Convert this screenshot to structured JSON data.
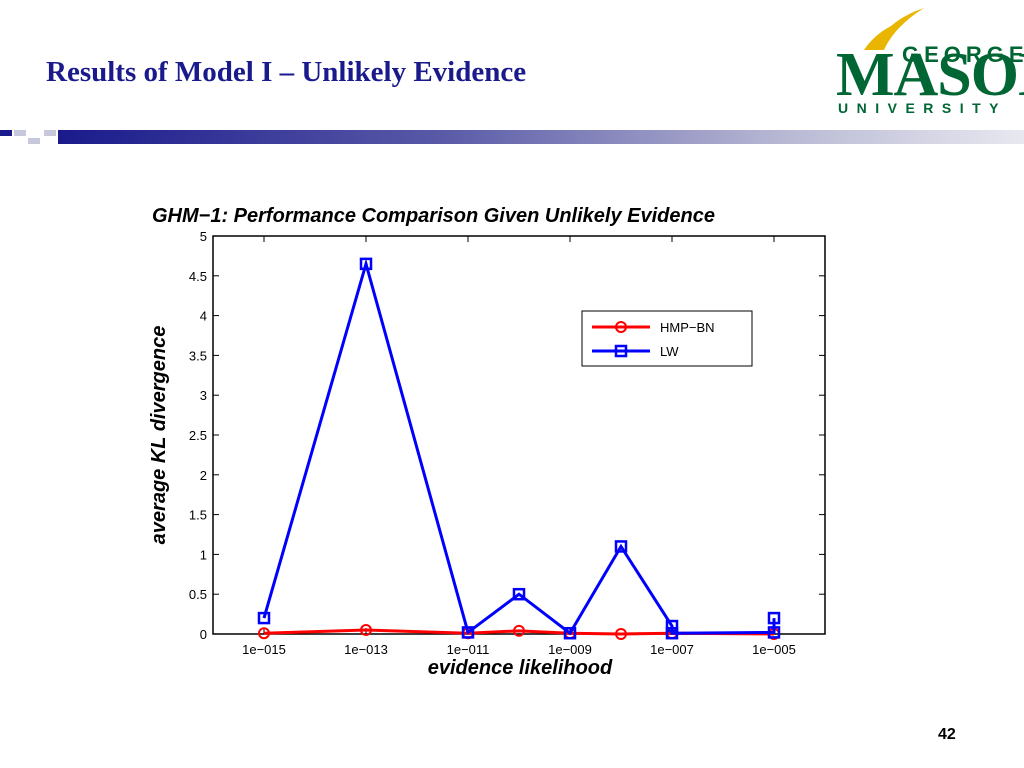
{
  "slide": {
    "title": "Results of  Model I – Unlikely Evidence",
    "page_number": "42"
  },
  "logo": {
    "line1": "GEORGE",
    "line2": "MASON",
    "line3": "UNIVERSITY",
    "colors": {
      "green": "#006633",
      "gold": "#e8b600"
    }
  },
  "colors": {
    "title": "#1a1a8c",
    "bar_dark": "#1a1a8c",
    "bar_light": "#c8c8dc"
  },
  "chart_data": {
    "type": "line",
    "title": "GHM−1: Performance Comparison Given Unlikely Evidence",
    "xlabel": "evidence likelihood",
    "ylabel": "average KL divergence",
    "ylim": [
      0,
      5
    ],
    "yticks": [
      "0",
      "0.5",
      "1",
      "1.5",
      "2",
      "2.5",
      "3",
      "3.5",
      "4",
      "4.5",
      "5"
    ],
    "xticks": [
      "1e−015",
      "1e−013",
      "1e−011",
      "1e−009",
      "1e−007",
      "1e−005"
    ],
    "x_log_exponents_range": [
      -16,
      -4
    ],
    "grid": false,
    "legend_position": "top-right",
    "series": [
      {
        "name": "HMP−BN",
        "color": "#ff0000",
        "marker": "circle",
        "x": [
          1e-15,
          1e-13,
          1e-11,
          1e-10,
          1e-09,
          1e-08,
          1e-07,
          1e-05
        ],
        "y": [
          0.01,
          0.05,
          0.01,
          0.04,
          0.01,
          0.0,
          0.01,
          0.0
        ]
      },
      {
        "name": "LW",
        "color": "#0000ff",
        "marker": "square",
        "x": [
          1e-15,
          1e-13,
          1e-11,
          1e-10,
          1e-09,
          1e-08,
          1e-07,
          1e-07,
          1e-05,
          1e-05
        ],
        "y": [
          0.2,
          4.65,
          0.02,
          0.5,
          0.01,
          1.1,
          0.1,
          0.01,
          0.02,
          0.2
        ]
      }
    ]
  }
}
